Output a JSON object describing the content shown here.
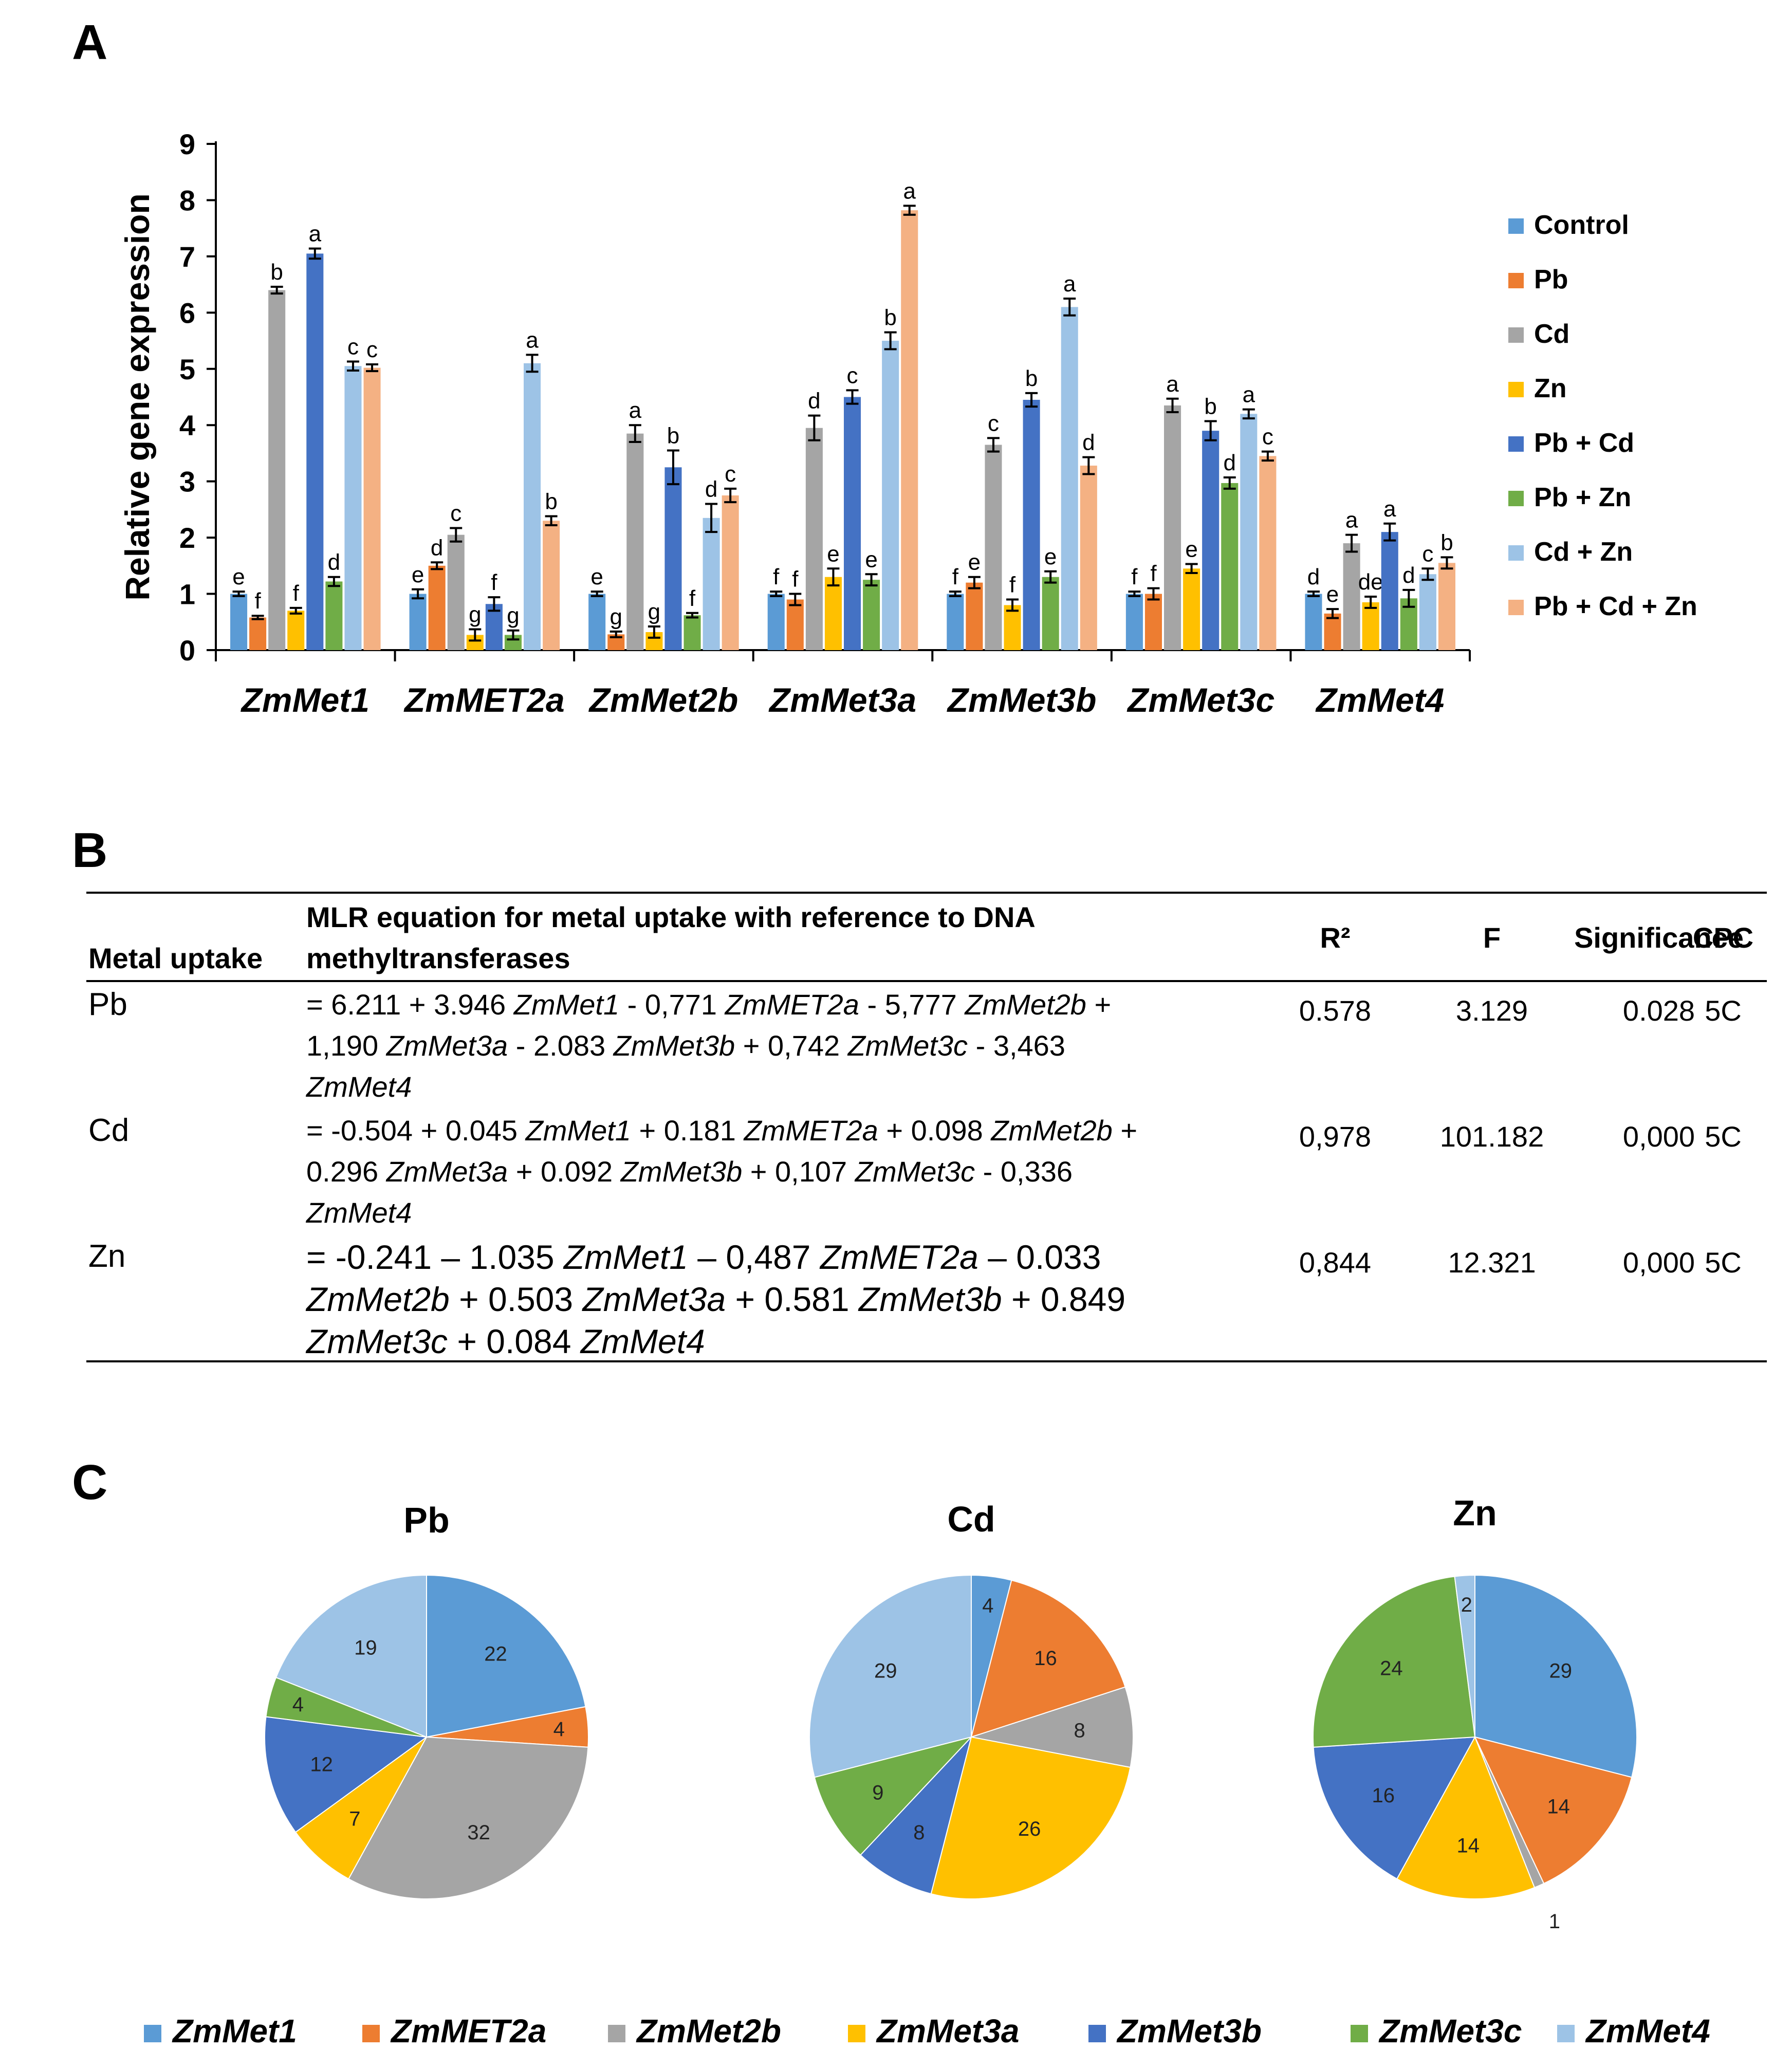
{
  "panel_labels": {
    "a": "A",
    "b": "B",
    "c": "C"
  },
  "colors": {
    "Control": "#5b9bd5",
    "Pb": "#ed7d31",
    "Cd": "#a5a5a5",
    "Zn": "#ffc000",
    "Pb + Cd": "#4472c4",
    "Pb +  Zn": "#70ad47",
    "Cd + Zn": "#9dc3e6",
    "Pb + Cd + Zn": "#f4b183"
  },
  "chart_data": [
    {
      "type": "bar",
      "panel": "A",
      "ylabel": "Relative gene expression",
      "ylim": [
        0,
        9
      ],
      "yticks": [
        "0",
        "1",
        "2",
        "3",
        "4",
        "5",
        "6",
        "7",
        "8",
        "9"
      ],
      "categories": [
        "ZmMet1",
        "ZmMET2a",
        "ZmMet2b",
        "ZmMet3a",
        "ZmMet3b",
        "ZmMet3c",
        "ZmMet4"
      ],
      "legend_position": "right",
      "series": [
        {
          "name": "Control",
          "color": "#5b9bd5",
          "values": [
            1.0,
            1.0,
            1.0,
            1.0,
            1.0,
            1.0,
            1.0
          ],
          "errors": [
            0.04,
            0.08,
            0.04,
            0.04,
            0.04,
            0.04,
            0.04
          ],
          "letters": [
            "e",
            "e",
            "e",
            "f",
            "f",
            "f",
            "d"
          ]
        },
        {
          "name": "Pb",
          "color": "#ed7d31",
          "values": [
            0.58,
            1.5,
            0.28,
            0.9,
            1.2,
            1.0,
            0.65
          ],
          "errors": [
            0.03,
            0.06,
            0.05,
            0.1,
            0.1,
            0.1,
            0.08
          ],
          "letters": [
            "f",
            "d",
            "g",
            "f",
            "e",
            "f",
            "e"
          ]
        },
        {
          "name": "Cd",
          "color": "#a5a5a5",
          "values": [
            6.4,
            2.05,
            3.85,
            3.95,
            3.65,
            4.35,
            1.9
          ],
          "errors": [
            0.06,
            0.12,
            0.15,
            0.22,
            0.12,
            0.12,
            0.15
          ],
          "letters": [
            "b",
            "c",
            "a",
            "d",
            "c",
            "a",
            "a"
          ]
        },
        {
          "name": "Zn",
          "color": "#ffc000",
          "values": [
            0.7,
            0.27,
            0.32,
            1.3,
            0.8,
            1.45,
            0.85
          ],
          "errors": [
            0.05,
            0.1,
            0.1,
            0.15,
            0.1,
            0.08,
            0.1
          ],
          "letters": [
            "f",
            "g",
            "g",
            "e",
            "f",
            "e",
            "de"
          ]
        },
        {
          "name": "Pb + Cd",
          "color": "#4472c4",
          "values": [
            7.05,
            0.82,
            3.25,
            4.5,
            4.45,
            3.9,
            2.1
          ],
          "errors": [
            0.09,
            0.12,
            0.3,
            0.12,
            0.12,
            0.17,
            0.15
          ],
          "letters": [
            "a",
            "f",
            "b",
            "c",
            "b",
            "b",
            "a"
          ]
        },
        {
          "name": "Pb +  Zn",
          "color": "#70ad47",
          "values": [
            1.22,
            0.27,
            0.62,
            1.25,
            1.3,
            2.97,
            0.92
          ],
          "errors": [
            0.08,
            0.08,
            0.04,
            0.1,
            0.1,
            0.1,
            0.15
          ],
          "letters": [
            "d",
            "g",
            "f",
            "e",
            "e",
            "d",
            "d"
          ]
        },
        {
          "name": "Cd + Zn",
          "color": "#9dc3e6",
          "values": [
            5.05,
            5.1,
            2.35,
            5.5,
            6.1,
            4.2,
            1.35
          ],
          "errors": [
            0.08,
            0.15,
            0.25,
            0.15,
            0.15,
            0.08,
            0.1
          ],
          "letters": [
            "c",
            "a",
            "d",
            "b",
            "a",
            "a",
            "c"
          ]
        },
        {
          "name": "Pb + Cd + Zn",
          "color": "#f4b183",
          "values": [
            5.02,
            2.3,
            2.75,
            7.82,
            3.28,
            3.45,
            1.55
          ],
          "errors": [
            0.06,
            0.08,
            0.12,
            0.08,
            0.15,
            0.08,
            0.1
          ],
          "letters": [
            "c",
            "b",
            "c",
            "a",
            "d",
            "c",
            "b"
          ]
        }
      ]
    },
    {
      "type": "pie",
      "panel": "C",
      "title": "Pb",
      "labels": [
        "ZmMet1",
        "ZmMET2a",
        "ZmMet2b",
        "ZmMet3a",
        "ZmMet3b",
        "ZmMet3c",
        "ZmMet4"
      ],
      "values": [
        22,
        4,
        32,
        7,
        12,
        4,
        19
      ]
    },
    {
      "type": "pie",
      "panel": "C",
      "title": "Cd",
      "labels": [
        "ZmMet1",
        "ZmMET2a",
        "ZmMet2b",
        "ZmMet3a",
        "ZmMet3b",
        "ZmMet3c",
        "ZmMet4"
      ],
      "values": [
        4,
        16,
        8,
        26,
        8,
        9,
        29
      ]
    },
    {
      "type": "pie",
      "panel": "C",
      "title": "Zn",
      "labels": [
        "ZmMet1",
        "ZmMET2a",
        "ZmMet2b",
        "ZmMet3a",
        "ZmMet3b",
        "ZmMet3c",
        "ZmMet4"
      ],
      "values": [
        29,
        14,
        1,
        14,
        16,
        24,
        2
      ]
    }
  ],
  "pie_legend": [
    {
      "label": "ZmMet1",
      "color": "#5b9bd5"
    },
    {
      "label": "ZmMET2a",
      "color": "#ed7d31"
    },
    {
      "label": "ZmMet2b",
      "color": "#a5a5a5"
    },
    {
      "label": "ZmMet3a",
      "color": "#ffc000"
    },
    {
      "label": "ZmMet3b",
      "color": "#4472c4"
    },
    {
      "label": "ZmMet3c",
      "color": "#70ad47"
    },
    {
      "label": "ZmMet4",
      "color": "#9dc3e6"
    }
  ],
  "table_b": {
    "headers": {
      "metal": "Metal uptake",
      "equation_line1": "MLR equation for metal uptake with reference to DNA",
      "equation_line2": "methyltransferases",
      "r2": "R²",
      "f": "F",
      "significance": "Significance",
      "cpc": "CPC"
    },
    "rows": [
      {
        "metal": "Pb",
        "eq_lines": [
          [
            [
              "= 6.211 + 3.946 ",
              false
            ],
            [
              "ZmMet1",
              true
            ],
            [
              " - 0,771 ",
              false
            ],
            [
              "ZmMET2a",
              true
            ],
            [
              " - 5,777 ",
              false
            ],
            [
              "ZmMet2b",
              true
            ],
            [
              " +",
              false
            ]
          ],
          [
            [
              "1,190 ",
              false
            ],
            [
              "ZmMet3a",
              true
            ],
            [
              " - 2.083 ",
              false
            ],
            [
              "ZmMet3b",
              true
            ],
            [
              " + 0,742 ",
              false
            ],
            [
              "ZmMet3c",
              true
            ],
            [
              " - 3,463",
              false
            ]
          ],
          [
            [
              "ZmMet4",
              true
            ]
          ]
        ],
        "r2": "0.578",
        "f": "3.129",
        "significance": "0.028",
        "cpc": "5C"
      },
      {
        "metal": "Cd",
        "eq_lines": [
          [
            [
              "= -0.504 + 0.045 ",
              false
            ],
            [
              "ZmMet1",
              true
            ],
            [
              " + 0.181 ",
              false
            ],
            [
              "ZmMET2a",
              true
            ],
            [
              " + 0.098 ",
              false
            ],
            [
              "ZmMet2b",
              true
            ],
            [
              " +",
              false
            ]
          ],
          [
            [
              "0.296 ",
              false
            ],
            [
              "ZmMet3a",
              true
            ],
            [
              " + 0.092 ",
              false
            ],
            [
              "ZmMet3b",
              true
            ],
            [
              " + 0,107 ",
              false
            ],
            [
              "ZmMet3c",
              true
            ],
            [
              " - 0,336",
              false
            ]
          ],
          [
            [
              "ZmMet4",
              true
            ]
          ]
        ],
        "r2": "0,978",
        "f": "101.182",
        "significance": "0,000",
        "cpc": "5C"
      },
      {
        "metal": "Zn",
        "eq_lines": [
          [
            [
              "= -0.241 ",
              false
            ],
            [
              "–",
              false
            ],
            [
              " 1.035 ",
              false
            ],
            [
              "ZmMet1",
              true
            ],
            [
              " ",
              false
            ],
            [
              "–",
              false
            ],
            [
              " 0,487 ",
              false
            ],
            [
              "ZmMET2a",
              true
            ],
            [
              " ",
              false
            ],
            [
              "–",
              false
            ],
            [
              " 0.033",
              false
            ]
          ],
          [
            [
              "ZmMet2b",
              true
            ],
            [
              " + 0.503 ",
              false
            ],
            [
              "ZmMet3a",
              true
            ],
            [
              " + 0.581 ",
              false
            ],
            [
              "ZmMet3b",
              true
            ],
            [
              " + 0.849",
              false
            ]
          ],
          [
            [
              "ZmMet3c",
              true
            ],
            [
              " + 0.084 ",
              false
            ],
            [
              "ZmMet4",
              true
            ]
          ]
        ],
        "r2": "0,844",
        "f": "12.321",
        "significance": "0,000",
        "cpc": "5C"
      }
    ]
  }
}
